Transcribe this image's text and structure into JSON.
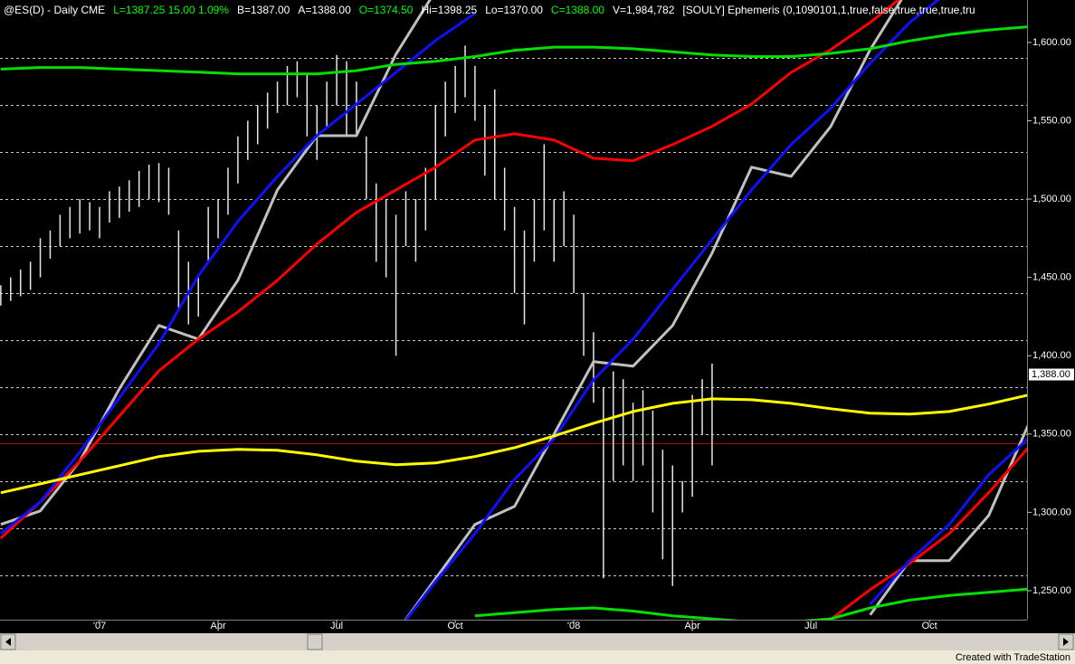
{
  "chart_data": {
    "type": "ohlc",
    "header": [
      {
        "text": "@ES(D) - Daily  CME",
        "color": "#ffffff"
      },
      {
        "text": "L=1387.25  15.00  1.09%",
        "color": "#00ff00"
      },
      {
        "text": "B=1387.00",
        "color": "#ffffff"
      },
      {
        "text": "A=1388.00",
        "color": "#ffffff"
      },
      {
        "text": "O=1374.50",
        "color": "#00ff00"
      },
      {
        "text": "Hi=1398.25",
        "color": "#ffffff"
      },
      {
        "text": "Lo=1370.00",
        "color": "#ffffff"
      },
      {
        "text": "C=1388.00",
        "color": "#00ff00"
      },
      {
        "text": "V=1,984,782",
        "color": "#ffffff"
      },
      {
        "text": "[SOULY] Ephemeris (0,1090101,1,true,false,true,true,true,tru",
        "color": "#ffffff"
      }
    ],
    "footer": "Created with TradeStation",
    "xlim": [
      -2.52,
      23.47
    ],
    "xticks": [
      {
        "value": 0,
        "label": "'07"
      },
      {
        "value": 3,
        "label": "Apr"
      },
      {
        "value": 6,
        "label": "Jul"
      },
      {
        "value": 9,
        "label": "Oct"
      },
      {
        "value": 12,
        "label": "'08"
      },
      {
        "value": 15,
        "label": "Apr"
      },
      {
        "value": 18,
        "label": "Jul"
      },
      {
        "value": 21,
        "label": "Oct"
      }
    ],
    "ylim": [
      1231.5,
      1627.1
    ],
    "yticks": [
      {
        "value": 1250,
        "label": "1,250.00"
      },
      {
        "value": 1300,
        "label": "1,300.00"
      },
      {
        "value": 1350,
        "label": "1,350.00"
      },
      {
        "value": 1400,
        "label": "1,400.00"
      },
      {
        "value": 1450,
        "label": "1,450.00"
      },
      {
        "value": 1500,
        "label": "1,500.00"
      },
      {
        "value": 1550,
        "label": "1,550.00"
      },
      {
        "value": 1600,
        "label": "1,600.00"
      }
    ],
    "last_price": {
      "value": 1388,
      "label": "1,388.00"
    },
    "levels": [
      1260,
      1290,
      1320,
      1350,
      1380,
      1410,
      1440,
      1470,
      1500,
      1530,
      1560,
      1590
    ],
    "red_level": 1344,
    "bars": {
      "color": "#e6e6e6",
      "x": [
        -2.5,
        -2.25,
        -2,
        -1.75,
        -1.5,
        -1.25,
        -1,
        -0.75,
        -0.5,
        -0.25,
        0,
        0.25,
        0.5,
        0.75,
        1,
        1.25,
        1.5,
        1.75,
        2,
        2.25,
        2.5,
        2.75,
        3,
        3.25,
        3.5,
        3.75,
        4,
        4.25,
        4.5,
        4.75,
        5,
        5.25,
        5.5,
        5.75,
        6,
        6.25,
        6.5,
        6.75,
        7,
        7.25,
        7.5,
        7.75,
        8,
        8.25,
        8.5,
        8.75,
        9,
        9.25,
        9.5,
        9.75,
        10,
        10.25,
        10.5,
        10.75,
        11,
        11.25,
        11.5,
        11.75,
        12,
        12.25,
        12.5,
        12.75,
        13,
        13.25,
        13.5,
        13.75,
        14,
        14.25,
        14.5,
        14.75,
        15,
        15.25,
        15.5
      ],
      "high": [
        1445,
        1450,
        1455,
        1460,
        1475,
        1480,
        1490,
        1495,
        1500,
        1498,
        1495,
        1505,
        1508,
        1512,
        1518,
        1522,
        1523,
        1520,
        1480,
        1460,
        1450,
        1495,
        1500,
        1520,
        1540,
        1550,
        1560,
        1568,
        1575,
        1585,
        1588,
        1580,
        1560,
        1575,
        1592,
        1588,
        1575,
        1540,
        1510,
        1500,
        1490,
        1505,
        1500,
        1520,
        1560,
        1575,
        1585,
        1598,
        1585,
        1560,
        1570,
        1520,
        1495,
        1480,
        1500,
        1535,
        1500,
        1505,
        1490,
        1440,
        1415,
        1380,
        1390,
        1385,
        1370,
        1378,
        1365,
        1340,
        1330,
        1320,
        1375,
        1385,
        1395
      ],
      "low": [
        1432,
        1435,
        1438,
        1442,
        1450,
        1462,
        1470,
        1475,
        1478,
        1480,
        1475,
        1485,
        1488,
        1492,
        1495,
        1500,
        1498,
        1490,
        1430,
        1420,
        1425,
        1460,
        1475,
        1490,
        1510,
        1525,
        1535,
        1545,
        1555,
        1560,
        1565,
        1540,
        1525,
        1545,
        1560,
        1540,
        1540,
        1500,
        1460,
        1450,
        1400,
        1470,
        1460,
        1480,
        1500,
        1540,
        1555,
        1565,
        1550,
        1515,
        1500,
        1480,
        1440,
        1420,
        1460,
        1480,
        1460,
        1470,
        1440,
        1400,
        1370,
        1258,
        1320,
        1330,
        1320,
        1330,
        1300,
        1270,
        1253,
        1300,
        1310,
        1350,
        1330
      ]
    },
    "x": [
      -2.5,
      -1.5,
      -0.5,
      0.5,
      1.5,
      2.5,
      3.5,
      4.5,
      5.5,
      6.5,
      7.5,
      8.5,
      9.5,
      10.5,
      11.5,
      12.5,
      13.5,
      14.5,
      15.5,
      16.5,
      17.5,
      18.5,
      19.5,
      20.5,
      21.5,
      22.5,
      23.5
    ],
    "series": [
      {
        "color": "#c0c0c0",
        "values": [
          1292.3,
          1300.9,
          1332.7,
          1378.9,
          1419.3,
          1410.6,
          1448.2,
          1505.9,
          1540.5,
          1540.5,
          1592.5,
          1632.9,
          null,
          null,
          null,
          null,
          null,
          null,
          null,
          null,
          null,
          null,
          null,
          null,
          null,
          null,
          null
        ]
      },
      {
        "color": "#c0c0c0",
        "values": [
          null,
          null,
          null,
          null,
          null,
          null,
          null,
          null,
          null,
          null,
          1223,
          1257.6,
          1292.3,
          1303.8,
          1350,
          1396.2,
          1393.3,
          1419.3,
          1465.5,
          1520.4,
          1514.5,
          1546.3,
          1595.4,
          1635.8,
          null,
          null,
          null
        ]
      },
      {
        "color": "#c0c0c0",
        "values": [
          null,
          null,
          null,
          null,
          null,
          null,
          null,
          null,
          null,
          null,
          null,
          null,
          null,
          null,
          null,
          null,
          null,
          null,
          null,
          null,
          null,
          null,
          1234.5,
          1269.2,
          1269.2,
          1298,
          1355.8
        ]
      },
      {
        "color": "#ff0000",
        "values": [
          1283.6,
          1306.7,
          1332.7,
          1361.5,
          1390.4,
          1410.6,
          1428,
          1448.2,
          1471.3,
          1491.5,
          1505.9,
          1520.4,
          1537.7,
          1541.7,
          1537.7,
          1526.1,
          1524.4,
          1534.8,
          1546.4,
          1560.7,
          1580.9,
          1595.4,
          1612.7,
          1632.9,
          null,
          null,
          null
        ]
      },
      {
        "color": "#ff0000",
        "values": [
          null,
          null,
          null,
          null,
          null,
          null,
          null,
          null,
          null,
          null,
          null,
          null,
          null,
          null,
          null,
          null,
          null,
          null,
          null,
          null,
          null,
          1231.6,
          1250.7,
          1267.4,
          1286.4,
          1312.5,
          1341.3
        ]
      },
      {
        "color": "#1010ff",
        "values": [
          1286.5,
          1306.7,
          1338.5,
          1373.1,
          1407.7,
          1451,
          1485.7,
          1514.5,
          1540.5,
          1560.7,
          1580.9,
          1601.2,
          1618.5,
          null,
          null,
          null,
          null,
          null,
          null,
          null,
          null,
          null,
          null,
          null,
          null,
          null,
          null
        ]
      },
      {
        "color": "#1010ff",
        "values": [
          null,
          null,
          null,
          null,
          null,
          null,
          null,
          null,
          null,
          null,
          1223,
          1255.9,
          1286.5,
          1321.1,
          1347.1,
          1384.6,
          1410.6,
          1442.4,
          1474.1,
          1505.9,
          1534.8,
          1557.9,
          1586.7,
          1612.7,
          1632.9,
          null,
          null
        ]
      },
      {
        "color": "#1010ff",
        "values": [
          null,
          null,
          null,
          null,
          null,
          null,
          null,
          null,
          null,
          null,
          null,
          null,
          null,
          null,
          null,
          null,
          null,
          null,
          null,
          null,
          null,
          null,
          1241.4,
          1269.2,
          1292.3,
          1324,
          1347.1
        ]
      },
      {
        "color": "#ffff00",
        "values": [
          1312.5,
          1318.2,
          1324,
          1329.8,
          1335.6,
          1339,
          1340.2,
          1339.6,
          1336.7,
          1332.7,
          1330.4,
          1331.5,
          1335.6,
          1341.3,
          1348.8,
          1356.9,
          1364.4,
          1369.6,
          1372.5,
          1371.9,
          1369.6,
          1366.2,
          1363.3,
          1362.7,
          1364.4,
          1369.1,
          1374.9
        ]
      },
      {
        "color": "#00e000",
        "values": [
          1583,
          1584,
          1584,
          1583,
          1582,
          1581,
          1580,
          1580,
          1580,
          1582,
          1586,
          1588,
          1591,
          1595,
          1597,
          1597,
          1596,
          1594,
          1592,
          1591,
          1591,
          1593,
          1596,
          1601,
          1605,
          1608,
          1610
        ]
      },
      {
        "color": "#00e000",
        "values": [
          null,
          null,
          null,
          null,
          null,
          null,
          null,
          null,
          null,
          null,
          null,
          null,
          1234,
          1236,
          1238,
          1239,
          1237,
          1234,
          1232,
          1230,
          1230,
          1232,
          1239,
          1244,
          1247,
          1249,
          1251
        ]
      }
    ]
  }
}
